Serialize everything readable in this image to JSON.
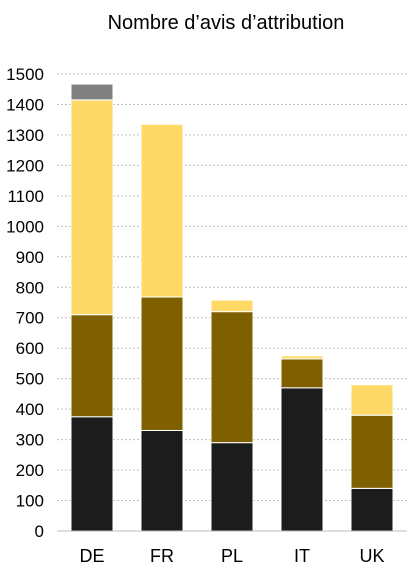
{
  "chart_data": {
    "type": "bar",
    "stacked": true,
    "title": "Nombre d’avis d’attribution",
    "xlabel": "",
    "ylabel": "",
    "ylim": [
      0,
      1500
    ],
    "yticks": [
      0,
      100,
      200,
      300,
      400,
      500,
      600,
      700,
      800,
      900,
      1000,
      1100,
      1200,
      1300,
      1400,
      1500
    ],
    "grid": true,
    "legend": "none",
    "categories": [
      "DE",
      "FR",
      "PL",
      "IT",
      "UK"
    ],
    "series": [
      {
        "color": "#1c1c1c",
        "values": [
          375,
          330,
          290,
          470,
          140
        ]
      },
      {
        "color": "#7f6000",
        "values": [
          335,
          438,
          430,
          95,
          240
        ]
      },
      {
        "color": "#ffd966",
        "values": [
          705,
          567,
          38,
          10,
          100
        ]
      },
      {
        "color": "#808080",
        "values": [
          52,
          0,
          0,
          0,
          0
        ]
      }
    ]
  }
}
